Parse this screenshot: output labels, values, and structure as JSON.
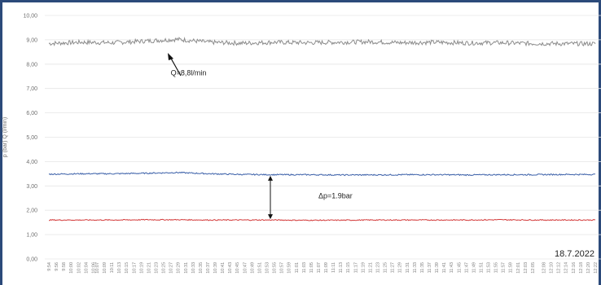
{
  "chart_data": {
    "type": "line",
    "title": "",
    "ylabel": "p (bar) Q (l/min)",
    "xlabel": "",
    "ylim": [
      0,
      10
    ],
    "yticks": [
      "0,00",
      "1,00",
      "2,00",
      "3,00",
      "4,00",
      "5,00",
      "6,00",
      "7,00",
      "8,00",
      "9,00",
      "10,00"
    ],
    "grid": true,
    "x_start_time": "9:54",
    "x_end_time": "12:22",
    "x_ticks": [
      "9:54",
      "9:56",
      "9:58",
      "10:00",
      "10:02",
      "10:04",
      "10:06",
      "10:07",
      "10:09",
      "10:11",
      "10:13",
      "10:15",
      "10:17",
      "10:19",
      "10:21",
      "10:23",
      "10:25",
      "10:27",
      "10:29",
      "10:31",
      "10:33",
      "10:35",
      "10:37",
      "10:39",
      "10:41",
      "10:43",
      "10:45",
      "10:47",
      "10:49",
      "10:51",
      "10:53",
      "10:55",
      "10:57",
      "10:59",
      "11:01",
      "11:03",
      "11:05",
      "11:07",
      "11:09",
      "11:11",
      "11:13",
      "11:15",
      "11:17",
      "11:19",
      "11:21",
      "11:23",
      "11:25",
      "11:27",
      "11:29",
      "11:31",
      "11:33",
      "11:35",
      "11:37",
      "11:39",
      "11:41",
      "11:43",
      "11:45",
      "11:47",
      "11:49",
      "11:51",
      "11:53",
      "11:55",
      "11:57",
      "11:59",
      "12:01",
      "12:03",
      "12:05",
      "12:08",
      "12:10",
      "12:12",
      "12:14",
      "12:16",
      "12:18",
      "12:20",
      "12:22"
    ],
    "series": [
      {
        "color": "#8c8c8c",
        "values": [
          8.85,
          8.9,
          8.88,
          8.95,
          9.02,
          8.9,
          8.86,
          8.9,
          8.88,
          8.9,
          8.92,
          8.88,
          8.9,
          8.87,
          8.88,
          8.85,
          8.84,
          8.84
        ]
      },
      {
        "color": "#3a5fa8",
        "values": [
          3.48,
          3.5,
          3.5,
          3.52,
          3.55,
          3.5,
          3.47,
          3.46,
          3.46,
          3.45,
          3.45,
          3.46,
          3.46,
          3.45,
          3.46,
          3.46,
          3.47,
          3.47
        ]
      },
      {
        "color": "#d33a3a",
        "values": [
          1.6,
          1.6,
          1.6,
          1.61,
          1.61,
          1.6,
          1.6,
          1.6,
          1.59,
          1.59,
          1.6,
          1.6,
          1.6,
          1.6,
          1.61,
          1.6,
          1.6,
          1.6
        ]
      }
    ],
    "annotations": [
      {
        "text": "Q=8,8l/min",
        "x_time": "10:27",
        "y": 7.55
      },
      {
        "text": "Δp=1.9bar",
        "x_time": "11:07",
        "y": 2.5
      }
    ],
    "date": "18.7.2022"
  }
}
